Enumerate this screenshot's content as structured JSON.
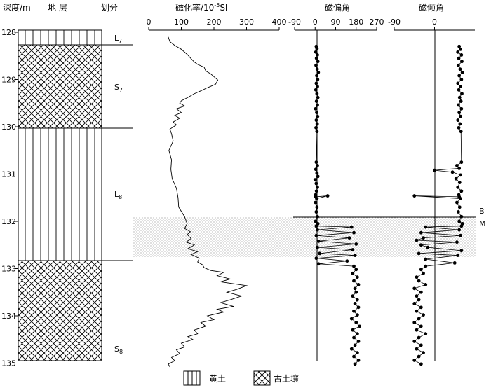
{
  "headers": {
    "depth": "深度/m",
    "strata": "地 层",
    "division": "划分",
    "susceptibility": "磁化率/10",
    "susceptibility_exp": "-5",
    "susceptibility_unit": "SI",
    "declination": "磁偏角",
    "inclination": "磁倾角"
  },
  "depth_ticks": [
    "128",
    "129",
    "130",
    "131",
    "132",
    "133",
    "134",
    "135"
  ],
  "units": [
    {
      "main": "L",
      "sub": "7"
    },
    {
      "main": "S",
      "sub": "7"
    },
    {
      "main": "L",
      "sub": "8"
    },
    {
      "main": "S",
      "sub": "8"
    }
  ],
  "boundary_labels": [
    "B",
    "M"
  ],
  "legend": {
    "loess": "黄土",
    "paleosol": "古土壤"
  },
  "chart_data": [
    {
      "type": "line",
      "title": "磁化率/10-5SI",
      "xlim": [
        0,
        400
      ],
      "xticks": [
        "0",
        "100",
        "200",
        "300",
        "400"
      ],
      "ylim": [
        128,
        135.1
      ],
      "y_is_depth_m": true,
      "points": [
        [
          60,
          128.1
        ],
        [
          65,
          128.2
        ],
        [
          80,
          128.28
        ],
        [
          100,
          128.36
        ],
        [
          110,
          128.42
        ],
        [
          120,
          128.48
        ],
        [
          130,
          128.56
        ],
        [
          140,
          128.63
        ],
        [
          150,
          128.68
        ],
        [
          170,
          128.74
        ],
        [
          175,
          128.82
        ],
        [
          190,
          128.88
        ],
        [
          200,
          128.94
        ],
        [
          212,
          129.01
        ],
        [
          205,
          129.1
        ],
        [
          178,
          129.18
        ],
        [
          160,
          129.24
        ],
        [
          140,
          129.3
        ],
        [
          120,
          129.38
        ],
        [
          100,
          129.45
        ],
        [
          95,
          129.5
        ],
        [
          110,
          129.56
        ],
        [
          85,
          129.62
        ],
        [
          100,
          129.7
        ],
        [
          80,
          129.76
        ],
        [
          95,
          129.82
        ],
        [
          75,
          129.9
        ],
        [
          85,
          129.96
        ],
        [
          65,
          130.05
        ],
        [
          70,
          130.15
        ],
        [
          75,
          130.3
        ],
        [
          62,
          130.5
        ],
        [
          70,
          130.7
        ],
        [
          68,
          130.9
        ],
        [
          72,
          131.1
        ],
        [
          85,
          131.3
        ],
        [
          90,
          131.5
        ],
        [
          92,
          131.7
        ],
        [
          110,
          131.9
        ],
        [
          118,
          132.05
        ],
        [
          110,
          132.15
        ],
        [
          128,
          132.22
        ],
        [
          118,
          132.28
        ],
        [
          130,
          132.36
        ],
        [
          115,
          132.44
        ],
        [
          140,
          132.5
        ],
        [
          120,
          132.58
        ],
        [
          150,
          132.64
        ],
        [
          130,
          132.7
        ],
        [
          155,
          132.78
        ],
        [
          150,
          132.86
        ],
        [
          165,
          132.92
        ],
        [
          170,
          132.98
        ],
        [
          190,
          133.04
        ],
        [
          230,
          133.08
        ],
        [
          210,
          133.15
        ],
        [
          250,
          133.22
        ],
        [
          220,
          133.28
        ],
        [
          300,
          133.36
        ],
        [
          270,
          133.44
        ],
        [
          240,
          133.5
        ],
        [
          285,
          133.58
        ],
        [
          250,
          133.66
        ],
        [
          220,
          133.72
        ],
        [
          260,
          133.8
        ],
        [
          210,
          133.86
        ],
        [
          230,
          133.92
        ],
        [
          180,
          134.0
        ],
        [
          200,
          134.08
        ],
        [
          160,
          134.14
        ],
        [
          175,
          134.22
        ],
        [
          140,
          134.3
        ],
        [
          150,
          134.38
        ],
        [
          120,
          134.44
        ],
        [
          135,
          134.5
        ],
        [
          100,
          134.58
        ],
        [
          110,
          134.66
        ],
        [
          85,
          134.72
        ],
        [
          95,
          134.8
        ],
        [
          70,
          134.88
        ],
        [
          80,
          134.95
        ],
        [
          60,
          135.02
        ],
        [
          65,
          135.08
        ]
      ]
    },
    {
      "type": "scatter",
      "title": "磁偏角",
      "xlim": [
        -90,
        270
      ],
      "xticks": [
        "-90",
        "0",
        "90",
        "180",
        "270"
      ],
      "ylim": [
        128,
        135.1
      ],
      "y_is_depth_m": true,
      "points": [
        [
          5,
          128.3
        ],
        [
          8,
          128.35
        ],
        [
          3,
          128.42
        ],
        [
          10,
          128.48
        ],
        [
          6,
          128.55
        ],
        [
          12,
          128.62
        ],
        [
          4,
          128.7
        ],
        [
          9,
          128.78
        ],
        [
          14,
          128.85
        ],
        [
          7,
          128.92
        ],
        [
          11,
          129.0
        ],
        [
          5,
          129.08
        ],
        [
          10,
          129.15
        ],
        [
          3,
          129.22
        ],
        [
          8,
          129.3
        ],
        [
          12,
          129.38
        ],
        [
          6,
          129.46
        ],
        [
          10,
          129.54
        ],
        [
          2,
          129.62
        ],
        [
          7,
          129.7
        ],
        [
          11,
          129.78
        ],
        [
          5,
          129.86
        ],
        [
          9,
          129.94
        ],
        [
          4,
          130.02
        ],
        [
          8,
          130.1
        ],
        [
          5,
          130.75
        ],
        [
          10,
          130.82
        ],
        [
          3,
          130.9
        ],
        [
          8,
          130.98
        ],
        [
          12,
          131.05
        ],
        [
          0,
          131.12
        ],
        [
          5,
          131.2
        ],
        [
          10,
          131.28
        ],
        [
          6,
          131.36
        ],
        [
          2,
          131.44
        ],
        [
          3,
          131.48
        ],
        [
          55,
          131.46
        ],
        [
          7,
          131.52
        ],
        [
          2,
          131.6
        ],
        [
          8,
          131.7
        ],
        [
          5,
          131.8
        ],
        [
          10,
          131.9
        ],
        [
          2,
          132.0
        ],
        [
          12,
          132.05
        ],
        [
          5,
          132.1
        ],
        [
          160,
          132.12
        ],
        [
          10,
          132.18
        ],
        [
          170,
          132.24
        ],
        [
          5,
          132.3
        ],
        [
          150,
          132.35
        ],
        [
          15,
          132.42
        ],
        [
          180,
          132.48
        ],
        [
          10,
          132.55
        ],
        [
          165,
          132.6
        ],
        [
          20,
          132.68
        ],
        [
          175,
          132.72
        ],
        [
          5,
          132.78
        ],
        [
          140,
          132.84
        ],
        [
          15,
          132.9
        ],
        [
          170,
          132.95
        ],
        [
          180,
          133.02
        ],
        [
          165,
          133.1
        ],
        [
          185,
          133.18
        ],
        [
          170,
          133.26
        ],
        [
          190,
          133.34
        ],
        [
          175,
          133.42
        ],
        [
          180,
          133.5
        ],
        [
          165,
          133.58
        ],
        [
          185,
          133.66
        ],
        [
          175,
          133.74
        ],
        [
          190,
          133.82
        ],
        [
          170,
          133.9
        ],
        [
          185,
          133.98
        ],
        [
          160,
          134.06
        ],
        [
          180,
          134.14
        ],
        [
          195,
          134.22
        ],
        [
          165,
          134.3
        ],
        [
          185,
          134.38
        ],
        [
          170,
          134.46
        ],
        [
          190,
          134.54
        ],
        [
          175,
          134.62
        ],
        [
          160,
          134.7
        ],
        [
          185,
          134.78
        ],
        [
          170,
          134.86
        ],
        [
          190,
          134.94
        ],
        [
          175,
          135.02
        ]
      ]
    },
    {
      "type": "scatter",
      "title": "磁倾角",
      "xlim": [
        -90,
        90
      ],
      "xticks": [
        "-90",
        "0"
      ],
      "ylim": [
        128,
        135.1
      ],
      "y_is_depth_m": true,
      "points": [
        [
          55,
          128.3
        ],
        [
          58,
          128.36
        ],
        [
          52,
          128.42
        ],
        [
          60,
          128.48
        ],
        [
          54,
          128.55
        ],
        [
          61,
          128.62
        ],
        [
          53,
          128.7
        ],
        [
          57,
          128.78
        ],
        [
          62,
          128.85
        ],
        [
          55,
          128.92
        ],
        [
          60,
          129.0
        ],
        [
          52,
          129.08
        ],
        [
          58,
          129.15
        ],
        [
          54,
          129.22
        ],
        [
          61,
          129.3
        ],
        [
          56,
          129.38
        ],
        [
          59,
          129.46
        ],
        [
          53,
          129.54
        ],
        [
          60,
          129.62
        ],
        [
          55,
          129.7
        ],
        [
          58,
          129.78
        ],
        [
          52,
          129.86
        ],
        [
          57,
          129.94
        ],
        [
          54,
          130.02
        ],
        [
          59,
          130.1
        ],
        [
          60,
          130.75
        ],
        [
          50,
          130.82
        ],
        [
          55,
          130.88
        ],
        [
          0,
          130.92
        ],
        [
          40,
          130.96
        ],
        [
          58,
          131.02
        ],
        [
          48,
          131.1
        ],
        [
          56,
          131.18
        ],
        [
          52,
          131.28
        ],
        [
          60,
          131.36
        ],
        [
          54,
          131.44
        ],
        [
          55,
          131.48
        ],
        [
          -45,
          131.46
        ],
        [
          58,
          131.52
        ],
        [
          50,
          131.6
        ],
        [
          56,
          131.7
        ],
        [
          53,
          131.8
        ],
        [
          60,
          131.9
        ],
        [
          55,
          132.0
        ],
        [
          62,
          132.05
        ],
        [
          60,
          132.1
        ],
        [
          -20,
          132.12
        ],
        [
          55,
          132.18
        ],
        [
          -30,
          132.24
        ],
        [
          58,
          132.3
        ],
        [
          -25,
          132.35
        ],
        [
          -40,
          132.4
        ],
        [
          50,
          132.44
        ],
        [
          -30,
          132.5
        ],
        [
          -15,
          132.55
        ],
        [
          60,
          132.62
        ],
        [
          -35,
          132.68
        ],
        [
          52,
          132.72
        ],
        [
          -20,
          132.8
        ],
        [
          45,
          132.88
        ],
        [
          -20,
          132.95
        ],
        [
          -30,
          133.02
        ],
        [
          -25,
          133.1
        ],
        [
          -40,
          133.18
        ],
        [
          -35,
          133.26
        ],
        [
          -20,
          133.34
        ],
        [
          -45,
          133.42
        ],
        [
          -30,
          133.5
        ],
        [
          -40,
          133.58
        ],
        [
          -35,
          133.66
        ],
        [
          -45,
          133.74
        ],
        [
          -30,
          133.82
        ],
        [
          -40,
          133.9
        ],
        [
          -25,
          133.98
        ],
        [
          -35,
          134.06
        ],
        [
          -45,
          134.14
        ],
        [
          -30,
          134.22
        ],
        [
          -40,
          134.3
        ],
        [
          -20,
          134.38
        ],
        [
          -35,
          134.46
        ],
        [
          -45,
          134.54
        ],
        [
          -30,
          134.62
        ],
        [
          -40,
          134.7
        ],
        [
          -25,
          134.78
        ],
        [
          -35,
          134.86
        ],
        [
          -45,
          134.94
        ],
        [
          -30,
          135.02
        ]
      ]
    }
  ]
}
